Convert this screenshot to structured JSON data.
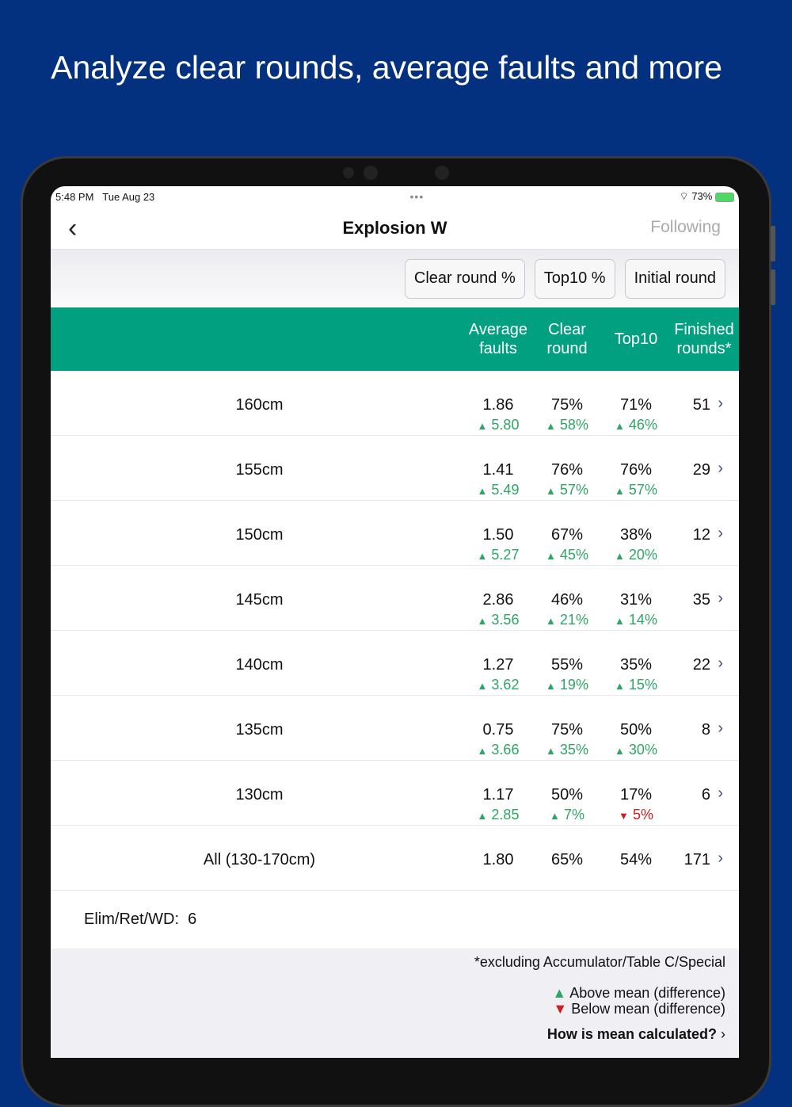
{
  "headline": "Analyze clear rounds, average faults and more",
  "status": {
    "time": "5:48 PM",
    "date": "Tue Aug 23",
    "battery": "73%"
  },
  "nav": {
    "title": "Explosion W",
    "following": "Following"
  },
  "filters": [
    "Clear round %",
    "Top10 %",
    "Initial round"
  ],
  "columns": {
    "avg_faults": [
      "Average",
      "faults"
    ],
    "clear_round": [
      "Clear",
      "round"
    ],
    "top10": "Top10",
    "finished": [
      "Finished",
      "rounds*"
    ]
  },
  "rows": [
    {
      "label": "160cm",
      "avg": "1.86",
      "avg_diff": "5.80",
      "avg_dir": "up",
      "clear": "75%",
      "clear_diff": "58%",
      "clear_dir": "up",
      "top10": "71%",
      "top10_diff": "46%",
      "top10_dir": "up",
      "finished": "51"
    },
    {
      "label": "155cm",
      "avg": "1.41",
      "avg_diff": "5.49",
      "avg_dir": "up",
      "clear": "76%",
      "clear_diff": "57%",
      "clear_dir": "up",
      "top10": "76%",
      "top10_diff": "57%",
      "top10_dir": "up",
      "finished": "29"
    },
    {
      "label": "150cm",
      "avg": "1.50",
      "avg_diff": "5.27",
      "avg_dir": "up",
      "clear": "67%",
      "clear_diff": "45%",
      "clear_dir": "up",
      "top10": "38%",
      "top10_diff": "20%",
      "top10_dir": "up",
      "finished": "12"
    },
    {
      "label": "145cm",
      "avg": "2.86",
      "avg_diff": "3.56",
      "avg_dir": "up",
      "clear": "46%",
      "clear_diff": "21%",
      "clear_dir": "up",
      "top10": "31%",
      "top10_diff": "14%",
      "top10_dir": "up",
      "finished": "35"
    },
    {
      "label": "140cm",
      "avg": "1.27",
      "avg_diff": "3.62",
      "avg_dir": "up",
      "clear": "55%",
      "clear_diff": "19%",
      "clear_dir": "up",
      "top10": "35%",
      "top10_diff": "15%",
      "top10_dir": "up",
      "finished": "22"
    },
    {
      "label": "135cm",
      "avg": "0.75",
      "avg_diff": "3.66",
      "avg_dir": "up",
      "clear": "75%",
      "clear_diff": "35%",
      "clear_dir": "up",
      "top10": "50%",
      "top10_diff": "30%",
      "top10_dir": "up",
      "finished": "8"
    },
    {
      "label": "130cm",
      "avg": "1.17",
      "avg_diff": "2.85",
      "avg_dir": "up",
      "clear": "50%",
      "clear_diff": "7%",
      "clear_dir": "up",
      "top10": "17%",
      "top10_diff": "5%",
      "top10_dir": "down",
      "finished": "6"
    },
    {
      "label": "All (130-170cm)",
      "avg": "1.80",
      "clear": "65%",
      "top10": "54%",
      "finished": "171"
    }
  ],
  "elim": {
    "label": "Elim/Ret/WD:",
    "value": "6"
  },
  "footer": {
    "note": "*excluding Accumulator/Table C/Special",
    "above": "Above mean (difference)",
    "below": "Below mean (difference)",
    "link": "How is mean calculated?"
  },
  "colors": {
    "background": "#04317f",
    "header": "#00a080",
    "up": "#2ea565",
    "down": "#cc1f1f"
  }
}
